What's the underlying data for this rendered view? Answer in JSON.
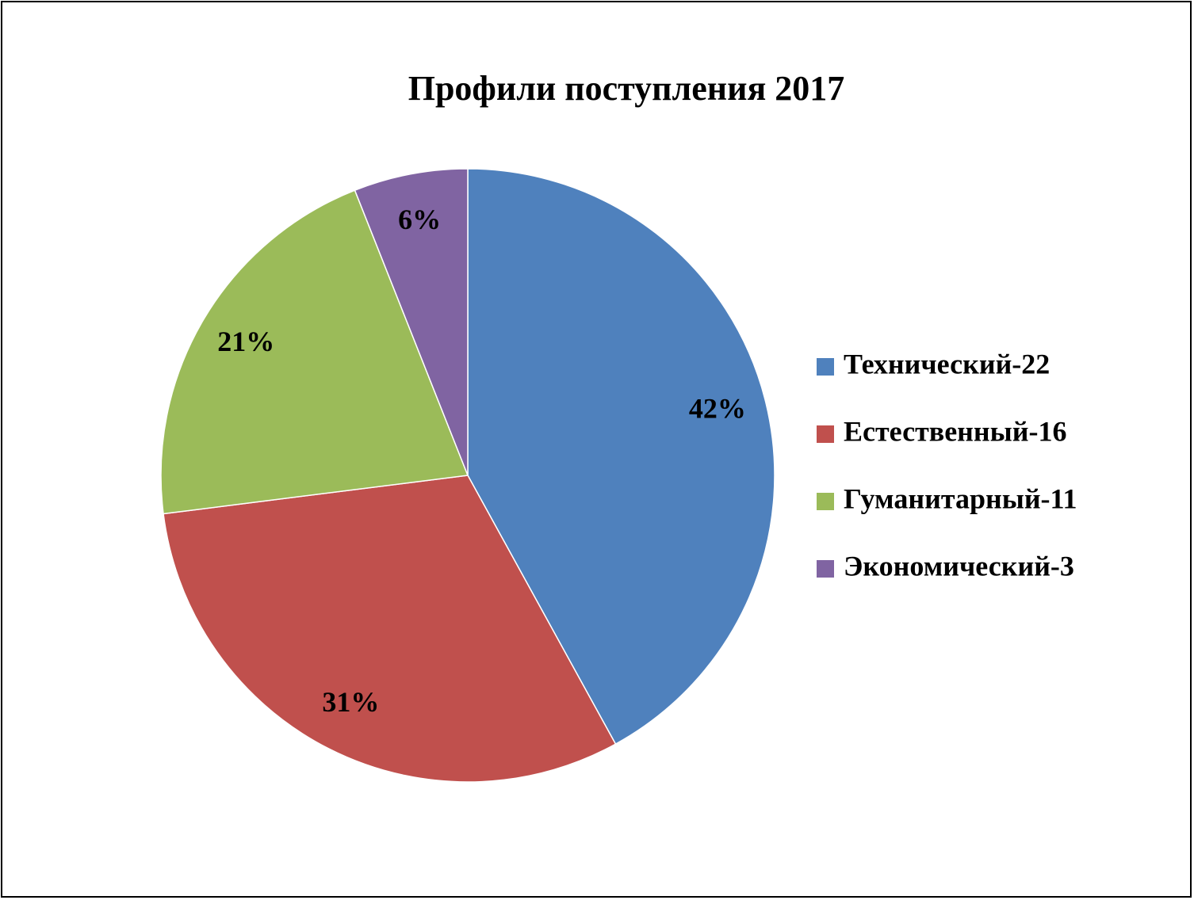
{
  "chart_data": {
    "type": "pie",
    "title": "Профили поступления 2017",
    "categories": [
      "Технический-22",
      "Естественный-16",
      "Гуманитарный-11",
      "Экономический-3"
    ],
    "values": [
      42,
      31,
      21,
      6
    ],
    "value_labels": [
      "42%",
      "31%",
      "21%",
      "6%"
    ],
    "colors": [
      "#4f81bd",
      "#c0504d",
      "#9bbb59",
      "#8064a2"
    ],
    "legend": "right"
  }
}
